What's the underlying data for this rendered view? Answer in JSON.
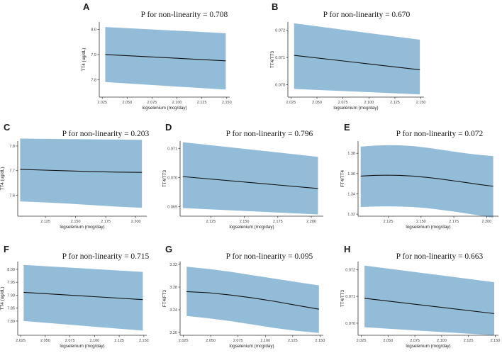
{
  "chart_data": [
    {
      "id": "A",
      "type": "line",
      "title": "P for non-linearity = 0.708",
      "xlabel": "logselenium (mcg/day)",
      "ylabel": "TT4 (ug/dL)",
      "xlim": [
        2.022,
        2.153
      ],
      "ylim": [
        7.73,
        8.03
      ],
      "xticks": [
        2.025,
        2.05,
        2.075,
        2.1,
        2.125,
        2.15
      ],
      "xtick_labels": [
        "2.025",
        "2.050",
        "2.075",
        "2.100",
        "2.125",
        "2.150"
      ],
      "yticks": [
        7.8,
        7.9,
        8.0
      ],
      "ytick_labels": [
        "7.8",
        "7.9",
        "8.0"
      ],
      "x": [
        2.028,
        2.149
      ],
      "fit": [
        7.9,
        7.875
      ],
      "lower": [
        7.79,
        7.76
      ],
      "upper": [
        8.01,
        7.985
      ]
    },
    {
      "id": "B",
      "type": "line",
      "title": "P for non-linearity = 0.670",
      "xlabel": "logselenium (mcg/day)",
      "ylabel": "TT4/TT3",
      "xlim": [
        2.022,
        2.153
      ],
      "ylim": [
        0.06955,
        0.0723
      ],
      "xticks": [
        2.025,
        2.05,
        2.075,
        2.1,
        2.125,
        2.15
      ],
      "xtick_labels": [
        "2.025",
        "2.050",
        "2.075",
        "2.100",
        "2.125",
        "2.150"
      ],
      "yticks": [
        0.07,
        0.071,
        0.072
      ],
      "ytick_labels": [
        "0.070",
        "0.071",
        "0.072"
      ],
      "x": [
        2.028,
        2.149
      ],
      "fit": [
        0.07108,
        0.07055
      ],
      "lower": [
        0.06985,
        0.06965
      ],
      "upper": [
        0.07225,
        0.07165
      ]
    },
    {
      "id": "C",
      "type": "line",
      "title": "P for non-linearity = 0.203",
      "xlabel": "logselenium (mcg/day)",
      "ylabel": "TT4 (ug/dL)",
      "xlim": [
        2.102,
        2.209
      ],
      "ylim": [
        7.515,
        7.82
      ],
      "xticks": [
        2.125,
        2.15,
        2.175,
        2.2
      ],
      "xtick_labels": [
        "2.125",
        "2.150",
        "2.175",
        "2.200"
      ],
      "yticks": [
        7.6,
        7.7,
        7.8
      ],
      "ytick_labels": [
        "7.6",
        "7.7",
        "7.8"
      ],
      "x": [
        2.104,
        2.124,
        2.144,
        2.164,
        2.184,
        2.205
      ],
      "fit": [
        7.705,
        7.702,
        7.699,
        7.696,
        7.694,
        7.693
      ],
      "lower": [
        7.575,
        7.571,
        7.566,
        7.56,
        7.554,
        7.549
      ],
      "upper": [
        7.83,
        7.829,
        7.828,
        7.827,
        7.826,
        7.825
      ]
    },
    {
      "id": "D",
      "type": "line",
      "title": "P for non-linearity = 0.796",
      "xlabel": "logselenium (mcg/day)",
      "ylabel": "TT4/TT3",
      "xlim": [
        2.102,
        2.209
      ],
      "ylim": [
        0.06867,
        0.07125
      ],
      "xticks": [
        2.125,
        2.15,
        2.175,
        2.2
      ],
      "xtick_labels": [
        "2.125",
        "2.150",
        "2.175",
        "2.200"
      ],
      "yticks": [
        0.069,
        0.07,
        0.071
      ],
      "ytick_labels": [
        "0.069",
        "0.070",
        "0.071"
      ],
      "x": [
        2.104,
        2.205
      ],
      "fit": [
        0.07003,
        0.06962
      ],
      "lower": [
        0.06895,
        0.06873
      ],
      "upper": [
        0.07121,
        0.07071
      ]
    },
    {
      "id": "E",
      "type": "line",
      "title": "P for non-linearity = 0.072",
      "xlabel": "logselenium (mcg/day)",
      "ylabel": "FT4/TT4",
      "xlim": [
        2.102,
        2.209
      ],
      "ylim": [
        1.318,
        1.392
      ],
      "xticks": [
        2.125,
        2.15,
        2.175,
        2.2
      ],
      "xtick_labels": [
        "2.125",
        "2.150",
        "2.175",
        "2.200"
      ],
      "yticks": [
        1.32,
        1.34,
        1.36,
        1.38
      ],
      "ytick_labels": [
        "1.32",
        "1.34",
        "1.36",
        "1.38"
      ],
      "x": [
        2.104,
        2.114,
        2.124,
        2.134,
        2.144,
        2.154,
        2.164,
        2.174,
        2.184,
        2.194,
        2.205
      ],
      "fit": [
        1.3575,
        1.3582,
        1.3584,
        1.3582,
        1.3575,
        1.3563,
        1.3548,
        1.353,
        1.3512,
        1.3493,
        1.3475
      ],
      "lower": [
        1.327,
        1.3275,
        1.3277,
        1.3275,
        1.327,
        1.326,
        1.3245,
        1.3228,
        1.3208,
        1.3188,
        1.3165
      ],
      "upper": [
        1.3865,
        1.3875,
        1.388,
        1.3878,
        1.387,
        1.3855,
        1.3837,
        1.3818,
        1.38,
        1.3785,
        1.3772
      ]
    },
    {
      "id": "F",
      "type": "line",
      "title": "P for non-linearity = 0.715",
      "xlabel": "logselenium (mcg/day)",
      "ylabel": "TT4 (ug/dL)",
      "xlim": [
        2.022,
        2.153
      ],
      "ylim": [
        7.745,
        8.03
      ],
      "xticks": [
        2.025,
        2.05,
        2.075,
        2.1,
        2.125,
        2.15
      ],
      "xtick_labels": [
        "2.025",
        "2.050",
        "2.075",
        "2.100",
        "2.125",
        "2.150"
      ],
      "yticks": [
        7.8,
        7.85,
        7.9,
        7.95,
        8.0
      ],
      "ytick_labels": [
        "7.80",
        "7.85",
        "7.90",
        "7.95",
        "8.00"
      ],
      "x": [
        2.028,
        2.149
      ],
      "fit": [
        7.911,
        7.883
      ],
      "lower": [
        7.8,
        7.763
      ],
      "upper": [
        8.017,
        7.99
      ]
    },
    {
      "id": "G",
      "type": "line",
      "title": "P for non-linearity = 0.095",
      "xlabel": "logselenium (mcg/day)",
      "ylabel": "FT4/FT3",
      "xlim": [
        2.022,
        2.153
      ],
      "ylim": [
        3.195,
        3.325
      ],
      "xticks": [
        2.025,
        2.05,
        2.075,
        2.1,
        2.125,
        2.15
      ],
      "xtick_labels": [
        "2.025",
        "2.050",
        "2.075",
        "2.100",
        "2.125",
        "2.150"
      ],
      "yticks": [
        3.2,
        3.24,
        3.28,
        3.32
      ],
      "ytick_labels": [
        "3.20",
        "3.24",
        "3.28",
        "3.32"
      ],
      "x": [
        2.028,
        2.048,
        2.068,
        2.088,
        2.108,
        2.128,
        2.149
      ],
      "fit": [
        3.272,
        3.27,
        3.266,
        3.261,
        3.255,
        3.248,
        3.241
      ],
      "lower": [
        3.229,
        3.225,
        3.22,
        3.214,
        3.208,
        3.203,
        3.199
      ],
      "upper": [
        3.316,
        3.312,
        3.307,
        3.301,
        3.295,
        3.289,
        3.283
      ]
    },
    {
      "id": "H",
      "type": "line",
      "title": "P for non-linearity = 0.663",
      "xlabel": "logselenium (mcg/day)",
      "ylabel": "TT4/TT3",
      "xlim": [
        2.022,
        2.153
      ],
      "ylim": [
        0.06955,
        0.0723
      ],
      "xticks": [
        2.025,
        2.05,
        2.075,
        2.1,
        2.125,
        2.15
      ],
      "xtick_labels": [
        "2.025",
        "2.050",
        "2.075",
        "2.100",
        "2.125",
        "2.150"
      ],
      "yticks": [
        0.07,
        0.071,
        0.072
      ],
      "ytick_labels": [
        "0.070",
        "0.071",
        "0.072"
      ],
      "x": [
        2.028,
        2.149
      ],
      "fit": [
        0.07093,
        0.07036
      ],
      "lower": [
        0.06985,
        0.06955
      ],
      "upper": [
        0.07215,
        0.07153
      ]
    }
  ]
}
